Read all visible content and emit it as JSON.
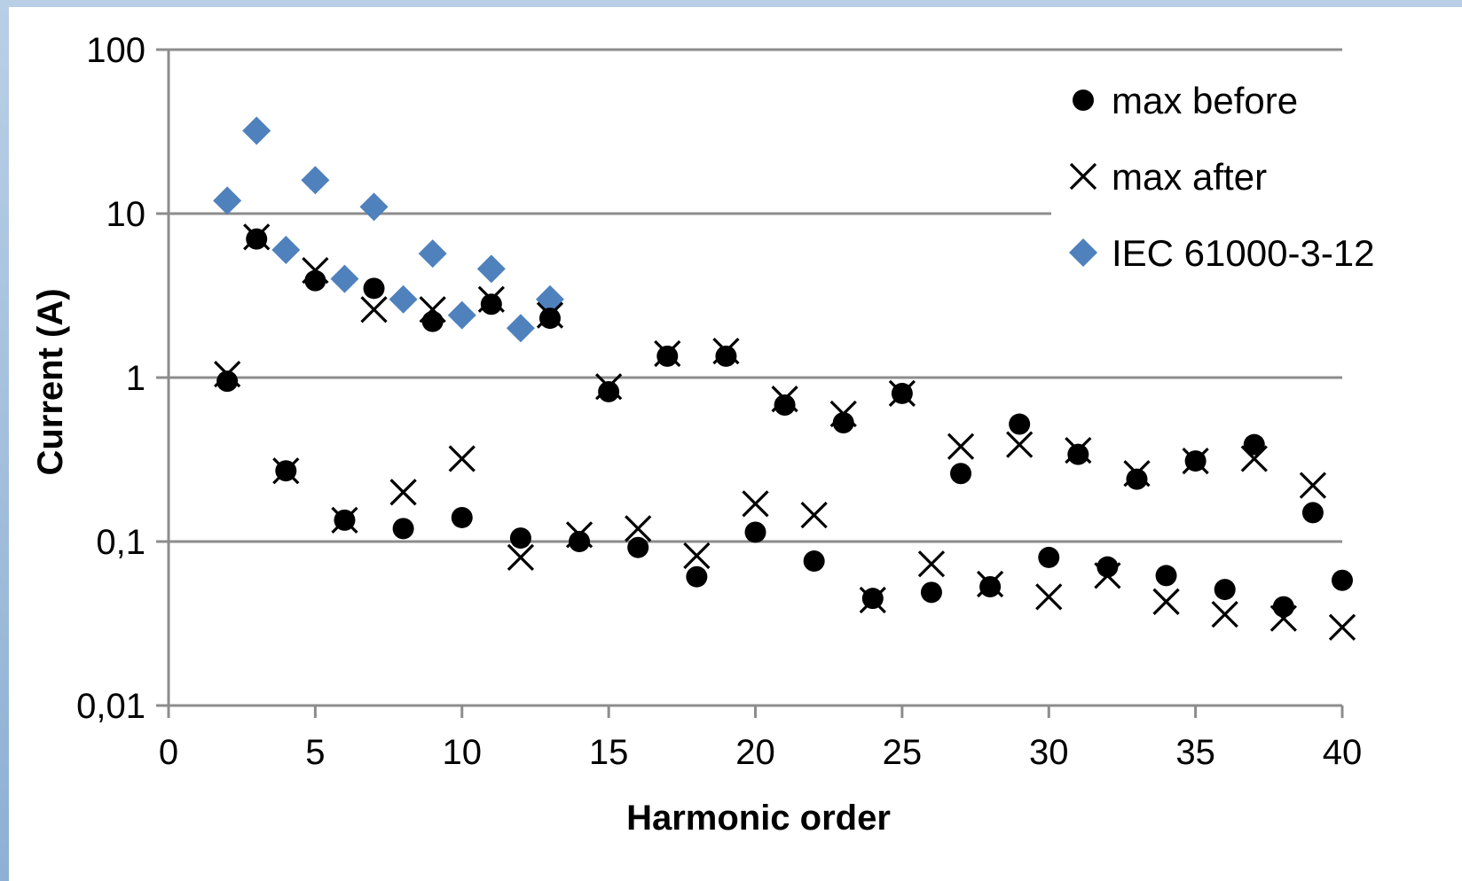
{
  "chart_data": {
    "type": "scatter",
    "title": "",
    "xlabel": "Harmonic order",
    "ylabel": "Current (A)",
    "xlim": [
      0,
      40
    ],
    "ylim": [
      0.01,
      100
    ],
    "yscale": "log",
    "x_ticks": [
      "0",
      "5",
      "10",
      "15",
      "20",
      "25",
      "30",
      "35",
      "40"
    ],
    "y_ticks": [
      "0,01",
      "0,1",
      "1",
      "10",
      "100"
    ],
    "grid": "horizontal",
    "legend_position": "top-right",
    "series": [
      {
        "name": "max before",
        "marker": "circle",
        "color": "#000000",
        "points": [
          [
            2,
            0.95
          ],
          [
            3,
            7.0
          ],
          [
            4,
            0.27
          ],
          [
            5,
            3.9
          ],
          [
            6,
            0.135
          ],
          [
            7,
            3.5
          ],
          [
            8,
            0.12
          ],
          [
            9,
            2.2
          ],
          [
            10,
            0.14
          ],
          [
            11,
            2.8
          ],
          [
            12,
            0.105
          ],
          [
            13,
            2.3
          ],
          [
            14,
            0.1
          ],
          [
            15,
            0.82
          ],
          [
            16,
            0.092
          ],
          [
            17,
            1.35
          ],
          [
            18,
            0.061
          ],
          [
            19,
            1.35
          ],
          [
            20,
            0.114
          ],
          [
            21,
            0.68
          ],
          [
            22,
            0.076
          ],
          [
            23,
            0.53
          ],
          [
            24,
            0.045
          ],
          [
            25,
            0.8
          ],
          [
            26,
            0.049
          ],
          [
            27,
            0.26
          ],
          [
            28,
            0.053
          ],
          [
            29,
            0.52
          ],
          [
            30,
            0.08
          ],
          [
            31,
            0.34
          ],
          [
            32,
            0.07
          ],
          [
            33,
            0.24
          ],
          [
            34,
            0.062
          ],
          [
            35,
            0.31
          ],
          [
            36,
            0.051
          ],
          [
            37,
            0.39
          ],
          [
            38,
            0.04
          ],
          [
            39,
            0.15
          ],
          [
            40,
            0.058
          ]
        ]
      },
      {
        "name": "max after",
        "marker": "cross",
        "color": "#000000",
        "points": [
          [
            2,
            1.05
          ],
          [
            3,
            7.2
          ],
          [
            4,
            0.27
          ],
          [
            5,
            4.5
          ],
          [
            6,
            0.135
          ],
          [
            7,
            2.6
          ],
          [
            8,
            0.2
          ],
          [
            9,
            2.6
          ],
          [
            10,
            0.32
          ],
          [
            11,
            3.0
          ],
          [
            12,
            0.08
          ],
          [
            13,
            2.4
          ],
          [
            14,
            0.11
          ],
          [
            15,
            0.88
          ],
          [
            16,
            0.12
          ],
          [
            17,
            1.4
          ],
          [
            18,
            0.082
          ],
          [
            19,
            1.45
          ],
          [
            20,
            0.17
          ],
          [
            21,
            0.74
          ],
          [
            22,
            0.145
          ],
          [
            23,
            0.6
          ],
          [
            24,
            0.044
          ],
          [
            25,
            0.8
          ],
          [
            26,
            0.073
          ],
          [
            27,
            0.38
          ],
          [
            28,
            0.055
          ],
          [
            29,
            0.39
          ],
          [
            30,
            0.046
          ],
          [
            31,
            0.36
          ],
          [
            32,
            0.062
          ],
          [
            33,
            0.26
          ],
          [
            34,
            0.043
          ],
          [
            35,
            0.31
          ],
          [
            36,
            0.036
          ],
          [
            37,
            0.32
          ],
          [
            38,
            0.034
          ],
          [
            39,
            0.22
          ],
          [
            40,
            0.03
          ]
        ]
      },
      {
        "name": "IEC 61000-3-12",
        "marker": "diamond",
        "color": "#4f81bd",
        "points": [
          [
            2,
            12.0
          ],
          [
            3,
            32.0
          ],
          [
            4,
            6.0
          ],
          [
            5,
            16.0
          ],
          [
            6,
            4.0
          ],
          [
            7,
            11.0
          ],
          [
            8,
            3.0
          ],
          [
            9,
            5.7
          ],
          [
            10,
            2.4
          ],
          [
            11,
            4.6
          ],
          [
            12,
            2.0
          ],
          [
            13,
            3.0
          ]
        ]
      }
    ]
  }
}
